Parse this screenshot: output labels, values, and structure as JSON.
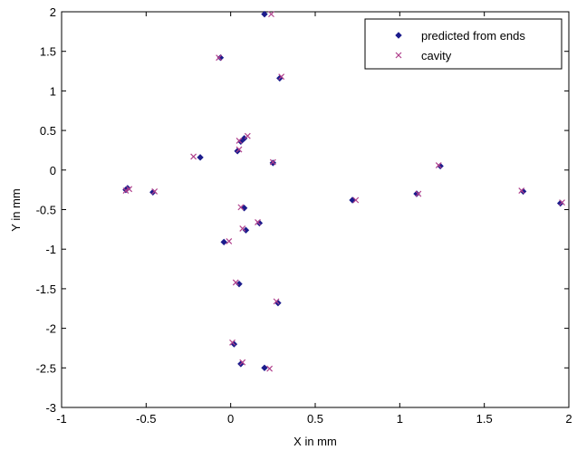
{
  "chart_data": {
    "type": "scatter",
    "title": "",
    "xlabel": "X in mm",
    "ylabel": "Y in mm",
    "xlim": [
      -1,
      2
    ],
    "ylim": [
      -3,
      2
    ],
    "xticks": [
      "-1",
      "-0.5",
      "0",
      "0.5",
      "1",
      "1.5",
      "2"
    ],
    "yticks": [
      "2",
      "1.5",
      "1",
      "0.5",
      "0",
      "-0.5",
      "-1",
      "-1.5",
      "-2",
      "-2.5",
      "-3"
    ],
    "grid": false,
    "legend_position": "top-right",
    "series": [
      {
        "name": "predicted from ends",
        "marker": "diamond",
        "color": "#1c1c8c",
        "points": [
          [
            0.2,
            1.97
          ],
          [
            -0.06,
            1.42
          ],
          [
            0.29,
            1.16
          ],
          [
            0.08,
            0.4
          ],
          [
            0.06,
            0.36
          ],
          [
            0.04,
            0.24
          ],
          [
            -0.18,
            0.16
          ],
          [
            0.25,
            0.09
          ],
          [
            1.24,
            0.05
          ],
          [
            -0.62,
            -0.25
          ],
          [
            -0.61,
            -0.23
          ],
          [
            -0.46,
            -0.28
          ],
          [
            0.72,
            -0.38
          ],
          [
            1.1,
            -0.3
          ],
          [
            1.73,
            -0.27
          ],
          [
            1.95,
            -0.42
          ],
          [
            0.08,
            -0.48
          ],
          [
            0.17,
            -0.67
          ],
          [
            0.09,
            -0.76
          ],
          [
            -0.04,
            -0.91
          ],
          [
            0.05,
            -1.44
          ],
          [
            0.28,
            -1.68
          ],
          [
            0.02,
            -2.2
          ],
          [
            0.06,
            -2.45
          ],
          [
            0.2,
            -2.5
          ]
        ]
      },
      {
        "name": "cavity",
        "marker": "x",
        "color": "#b0408c",
        "points": [
          [
            0.24,
            1.97
          ],
          [
            -0.07,
            1.42
          ],
          [
            0.3,
            1.18
          ],
          [
            0.1,
            0.43
          ],
          [
            0.05,
            0.37
          ],
          [
            0.05,
            0.26
          ],
          [
            -0.22,
            0.17
          ],
          [
            0.25,
            0.1
          ],
          [
            1.23,
            0.06
          ],
          [
            -0.62,
            -0.26
          ],
          [
            -0.6,
            -0.24
          ],
          [
            -0.45,
            -0.27
          ],
          [
            0.74,
            -0.38
          ],
          [
            1.11,
            -0.3
          ],
          [
            1.72,
            -0.26
          ],
          [
            1.96,
            -0.41
          ],
          [
            0.06,
            -0.47
          ],
          [
            0.16,
            -0.66
          ],
          [
            0.07,
            -0.74
          ],
          [
            -0.01,
            -0.9
          ],
          [
            0.03,
            -1.42
          ],
          [
            0.27,
            -1.66
          ],
          [
            0.01,
            -2.18
          ],
          [
            0.07,
            -2.43
          ],
          [
            0.23,
            -2.51
          ]
        ]
      }
    ]
  }
}
